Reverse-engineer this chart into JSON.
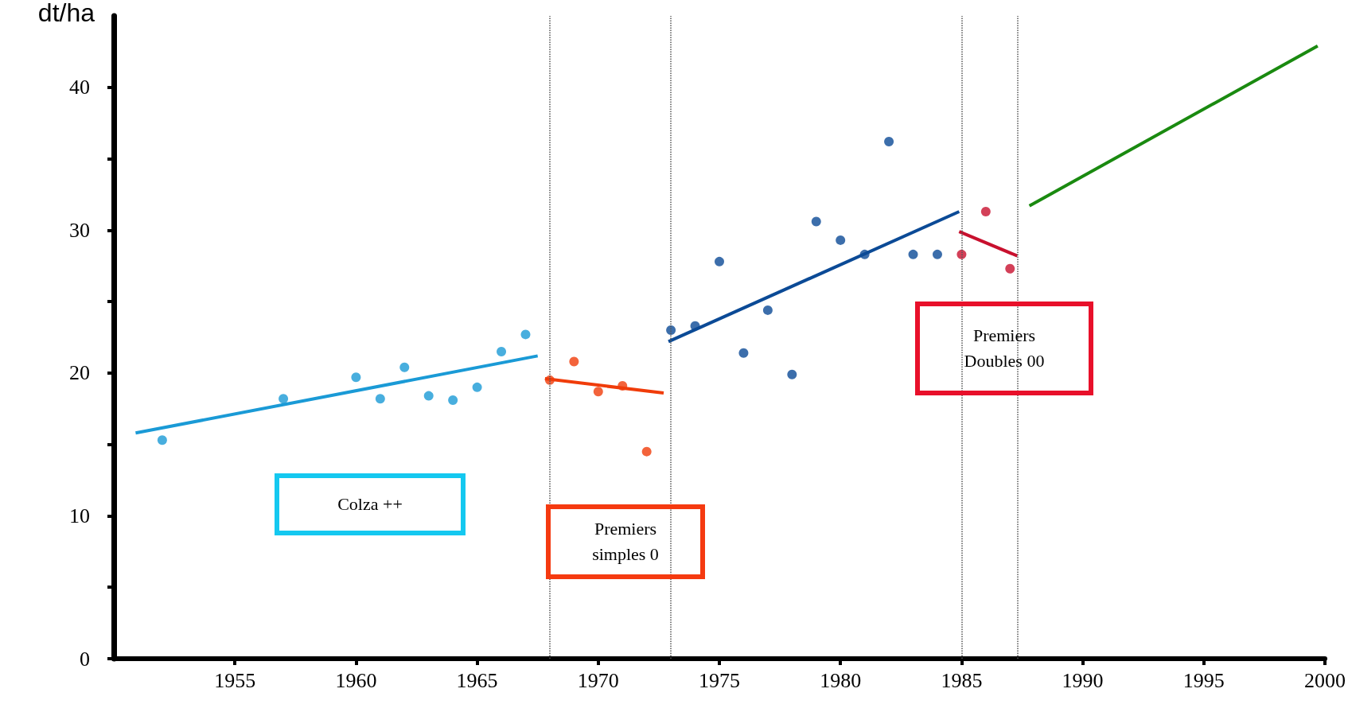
{
  "chart_data": {
    "type": "scatter",
    "ylabel": "dt/ha",
    "xlim": [
      1950,
      2000
    ],
    "xticks": [
      1955,
      1960,
      1965,
      1970,
      1975,
      1980,
      1985,
      1990,
      1995,
      2000
    ],
    "ylim": [
      0,
      45
    ],
    "yticks": [
      0,
      {
        "value": 5,
        "label": null
      },
      10,
      {
        "value": 15,
        "label": null
      },
      20,
      {
        "value": 25,
        "label": null
      },
      30,
      {
        "value": 35,
        "label": null
      },
      40
    ],
    "grid": false,
    "series": [
      {
        "marker": "circle",
        "color": "#1a9ad6",
        "x": [
          1952,
          1957,
          1960,
          1961,
          1962,
          1963,
          1964,
          1965,
          1966,
          1967
        ],
        "values": [
          15.3,
          18.2,
          19.7,
          18.2,
          20.4,
          18.4,
          18.1,
          19.0,
          21.5,
          22.7
        ]
      },
      {
        "type": "line",
        "color": "#1a9ad6",
        "x": [
          1950.9,
          1967.5
        ],
        "values": [
          15.8,
          21.2
        ]
      },
      {
        "marker": "circle",
        "color": "#f03c0a",
        "x": [
          1968,
          1969,
          1970,
          1971,
          1972
        ],
        "values": [
          19.5,
          20.8,
          18.7,
          19.1,
          14.5
        ]
      },
      {
        "type": "line",
        "color": "#f03c0a",
        "x": [
          1967.8,
          1972.7
        ],
        "values": [
          19.6,
          18.6
        ]
      },
      {
        "marker": "circle",
        "color": "#0b4a96",
        "x": [
          1973,
          1974,
          1975,
          1976,
          1977,
          1978,
          1979,
          1980,
          1981,
          1982,
          1983,
          1984
        ],
        "values": [
          23.0,
          23.3,
          27.8,
          21.4,
          24.4,
          19.9,
          30.6,
          29.3,
          28.3,
          36.2,
          28.3,
          28.3
        ]
      },
      {
        "type": "line",
        "color": "#0b4a96",
        "x": [
          1972.9,
          1984.9
        ],
        "values": [
          22.2,
          31.3
        ]
      },
      {
        "marker": "circle",
        "color": "#c8102e",
        "x": [
          1985,
          1986,
          1987
        ],
        "values": [
          28.3,
          31.3,
          27.3
        ]
      },
      {
        "type": "line",
        "color": "#c8102e",
        "x": [
          1984.9,
          1987.3
        ],
        "values": [
          29.9,
          28.2
        ]
      },
      {
        "type": "line",
        "color": "#1a8a10",
        "x": [
          1987.8,
          1999.7
        ],
        "values": [
          31.7,
          42.9
        ]
      }
    ],
    "ref_lines": [
      {
        "axis": "x",
        "value": 1968,
        "color": "#555555",
        "line_style": "dotted"
      },
      {
        "axis": "x",
        "value": 1973,
        "color": "#555555",
        "line_style": "dotted"
      },
      {
        "axis": "x",
        "value": 1985,
        "color": "#555555",
        "line_style": "dotted"
      },
      {
        "axis": "x",
        "value": 1987.3,
        "color": "#555555",
        "line_style": "dotted"
      }
    ],
    "annotations": [
      "Colza ++",
      "Premiers simples 0",
      "Premiers Doubles 00"
    ]
  }
}
